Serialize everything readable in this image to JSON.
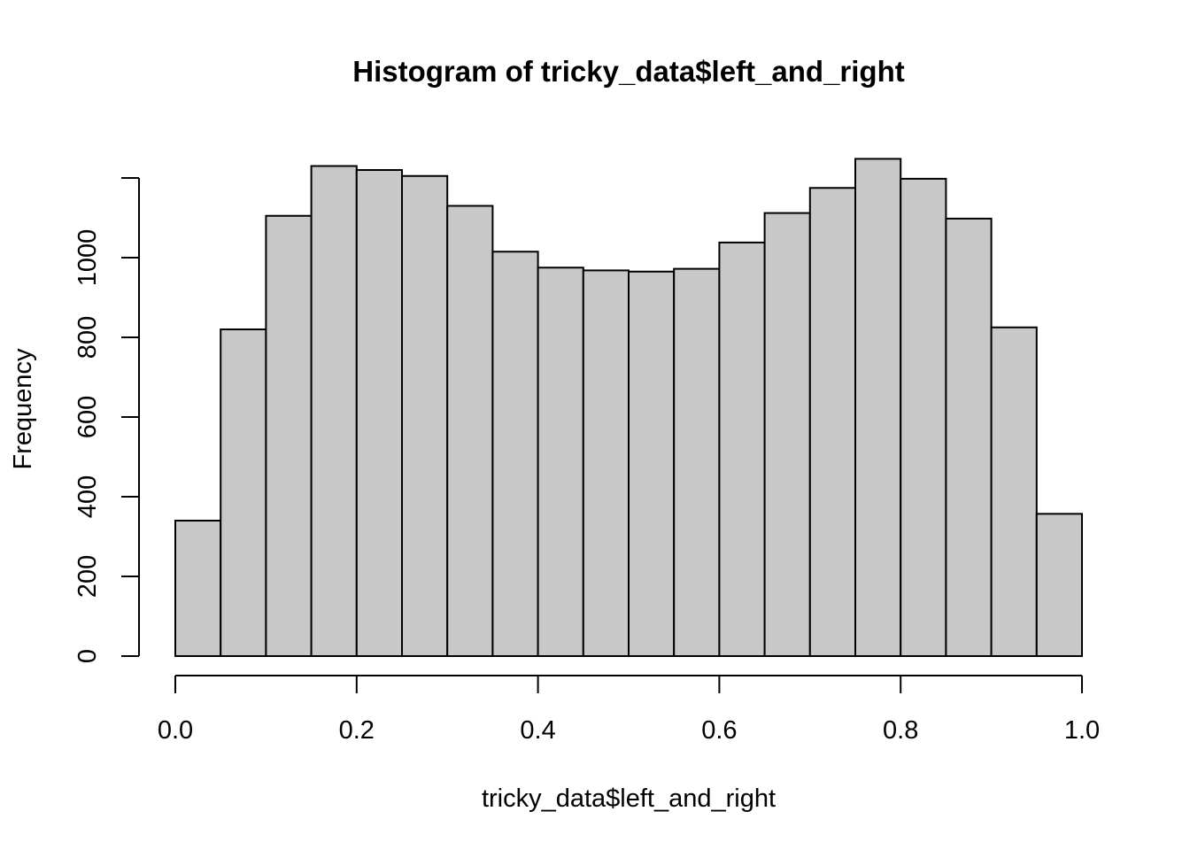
{
  "chart_data": {
    "type": "bar",
    "title": "Histogram of tricky_data$left_and_right",
    "xlabel": "tricky_data$left_and_right",
    "ylabel": "Frequency",
    "bin_edges": [
      0.0,
      0.05,
      0.1,
      0.15,
      0.2,
      0.25,
      0.3,
      0.35,
      0.4,
      0.45,
      0.5,
      0.55,
      0.6,
      0.65,
      0.7,
      0.75,
      0.8,
      0.85,
      0.9,
      0.95,
      1.0
    ],
    "values": [
      340,
      820,
      1105,
      1230,
      1220,
      1205,
      1130,
      1015,
      975,
      968,
      965,
      972,
      1038,
      1112,
      1175,
      1248,
      1198,
      1098,
      825,
      357
    ],
    "xlim": [
      0.0,
      1.0
    ],
    "ylim": [
      0,
      1250
    ],
    "x_ticks": [
      0.0,
      0.2,
      0.4,
      0.6,
      0.8,
      1.0
    ],
    "x_tick_labels": [
      "0.0",
      "0.2",
      "0.4",
      "0.6",
      "0.8",
      "1.0"
    ],
    "y_ticks": [
      0,
      200,
      400,
      600,
      800,
      1000
    ],
    "y_tick_labels": [
      "0",
      "200",
      "400",
      "600",
      "800",
      "1000"
    ],
    "grid": false,
    "bar_color": "#c8c8c8",
    "edge_color": "#000000"
  }
}
